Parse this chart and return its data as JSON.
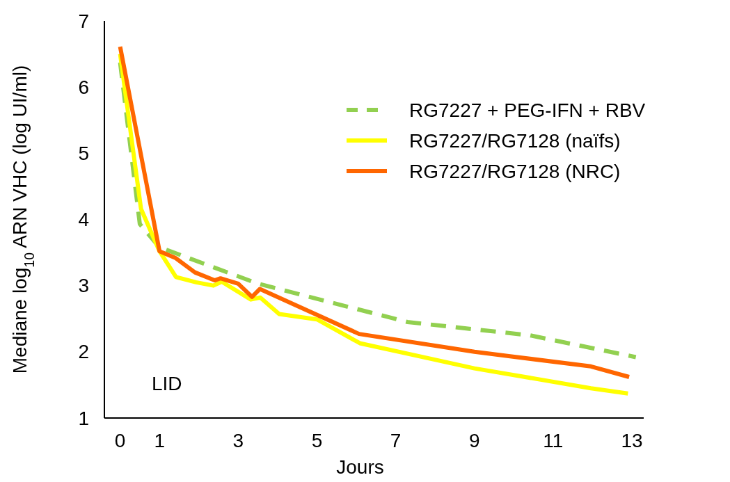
{
  "chart_data": {
    "type": "line",
    "xlabel": "Jours",
    "ylabel": "Mediane log$_{10}$ ARN VHC (log UI/ml)",
    "xlim": [
      -0.4,
      13.3
    ],
    "xticks": [
      0,
      1,
      3,
      5,
      7,
      9,
      11,
      13
    ],
    "ylim": [
      1,
      7
    ],
    "yticks": [
      1,
      2,
      3,
      4,
      5,
      6,
      7
    ],
    "grid": false,
    "legend": "top right",
    "annotations": [
      "LID"
    ],
    "series": [
      {
        "name": "RG7227 + PEG-IFN + RBV",
        "color": "#92d050",
        "line_style": "dashed",
        "x": [
          0,
          0.5,
          1,
          3.5,
          7.3,
          10.4,
          13.1
        ],
        "values": [
          6.37,
          3.93,
          3.58,
          3.03,
          2.45,
          2.25,
          1.92
        ]
      },
      {
        "name": "RG7227/RG7128 (naïfs)",
        "color": "#ffff00",
        "line_style": "solid",
        "x": [
          0,
          0.53,
          1,
          1.42,
          1.93,
          2.37,
          2.58,
          3.32,
          3.56,
          4.04,
          5,
          6.09,
          9,
          11.96,
          12.9
        ],
        "values": [
          6.5,
          4.16,
          3.52,
          3.13,
          3.05,
          3.0,
          3.06,
          2.79,
          2.82,
          2.57,
          2.49,
          2.13,
          1.75,
          1.45,
          1.37
        ]
      },
      {
        "name": "RG7227/RG7128 (NRC)",
        "color": "#ff6600",
        "line_style": "solid",
        "x": [
          0,
          1,
          1.4,
          1.9,
          2.4,
          2.55,
          3,
          3.35,
          3.55,
          6.07,
          9,
          11.96,
          12.93
        ],
        "values": [
          6.61,
          3.52,
          3.42,
          3.2,
          3.08,
          3.11,
          3.03,
          2.83,
          2.95,
          2.27,
          2.0,
          1.78,
          1.62
        ]
      }
    ]
  }
}
